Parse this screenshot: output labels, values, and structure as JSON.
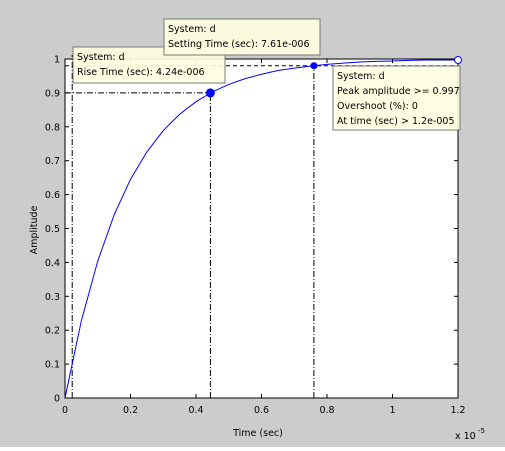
{
  "chart_data": {
    "type": "line",
    "xlabel": "Time (sec)",
    "ylabel": "Amplitude",
    "x_scale_label": "x 10",
    "x_scale_exponent": "-5",
    "x": [
      0,
      0.05,
      0.1,
      0.15,
      0.2,
      0.25,
      0.3,
      0.35,
      0.4,
      0.45,
      0.5,
      0.55,
      0.6,
      0.65,
      0.7,
      0.75,
      0.8,
      0.85,
      0.9,
      0.95,
      1.0,
      1.05,
      1.1,
      1.15,
      1.2
    ],
    "series": [
      {
        "name": "d",
        "color": "#0000ff",
        "values": [
          0,
          0.228,
          0.404,
          0.54,
          0.645,
          0.726,
          0.789,
          0.837,
          0.874,
          0.903,
          0.925,
          0.942,
          0.955,
          0.966,
          0.973,
          0.979,
          0.984,
          0.988,
          0.991,
          0.993,
          0.994,
          0.996,
          0.997,
          0.997,
          0.997
        ]
      }
    ],
    "xlim": [
      0,
      1.2
    ],
    "ylim": [
      0,
      1
    ],
    "xticks": [
      0,
      0.2,
      0.4,
      0.6,
      0.8,
      1,
      1.2
    ],
    "yticks": [
      0,
      0.1,
      0.2,
      0.3,
      0.4,
      0.5,
      0.6,
      0.7,
      0.8,
      0.9,
      1
    ],
    "steady_state": 1,
    "rise": {
      "x_start": 0.022,
      "x": 0.444,
      "y": 0.9
    },
    "settling": {
      "x": 0.76,
      "y": 0.98
    },
    "peak": {
      "x": 1.2,
      "y": 0.997
    },
    "datatips": [
      {
        "lines": [
          "System: d",
          "Rise Time (sec): 4.24e-006"
        ]
      },
      {
        "lines": [
          "System: d",
          "Setting Time (sec): 7.61e-006"
        ]
      },
      {
        "lines": [
          "System: d",
          "Peak amplitude >= 0.997",
          "Overshoot (%): 0",
          "At time (sec) > 1.2e-005"
        ]
      }
    ]
  }
}
